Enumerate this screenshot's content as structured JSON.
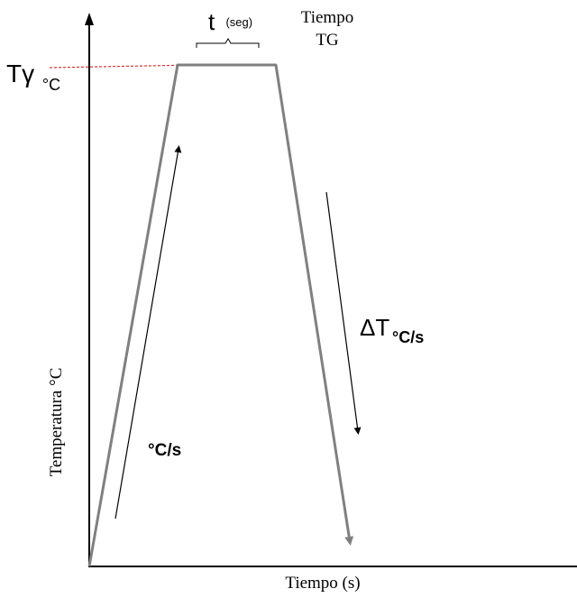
{
  "labels": {
    "t_main": "t",
    "t_sub": "(seg)",
    "tiempo_top": "Tiempo",
    "tg": "TG",
    "tgamma_main": "Tγ",
    "tgamma_sub": "°C",
    "delta_t_main": "ΔT",
    "delta_t_sub": "°C/s",
    "heating_rate": "°C/s",
    "y_axis": "Temperatura °C",
    "x_axis": "Tiempo (s)"
  },
  "colors": {
    "axis": "#000000",
    "profile": "#808080",
    "reference_line": "#e03030",
    "arrow": "#000000"
  }
}
